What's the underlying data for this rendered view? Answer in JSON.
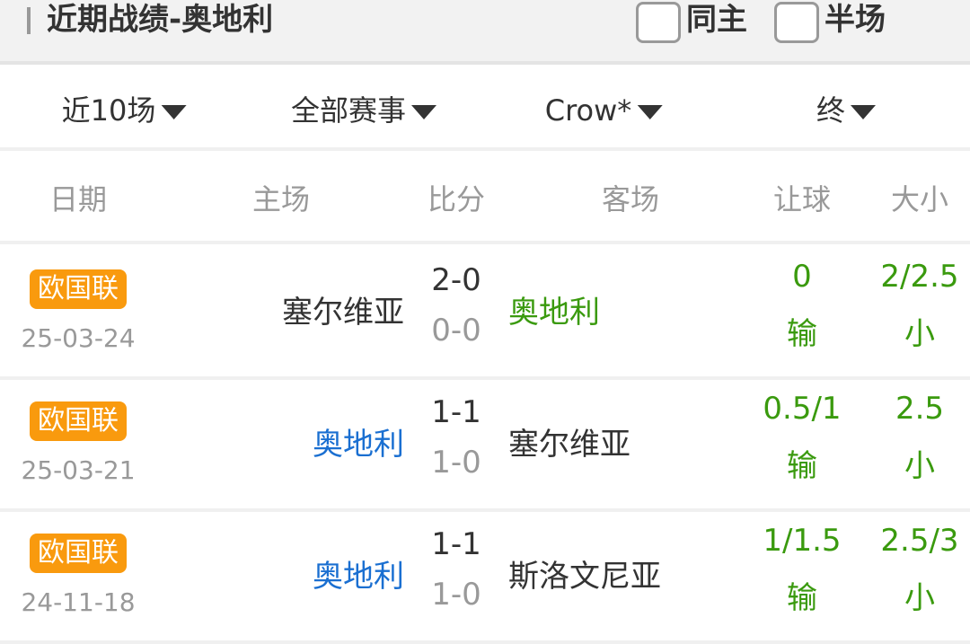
{
  "header": {
    "title": "近期战绩-奥地利",
    "same_home_label": "同主",
    "half_label": "半场"
  },
  "filters": [
    "近10场",
    "全部赛事",
    "Crow*",
    "终"
  ],
  "columns": [
    "日期",
    "主场",
    "比分",
    "客场",
    "让球",
    "大小"
  ],
  "colors": {
    "badge": "#f99a0e",
    "win_green": "#3a9a0e",
    "team_blue": "#1a6fd1"
  },
  "matches": [
    {
      "league": "欧国联",
      "date": "25-03-24",
      "home": "塞尔维亚",
      "home_color": "#333333",
      "score": "2-0",
      "half": "0-0",
      "away": "奥地利",
      "away_color": "#3a9a0e",
      "handicap": "0",
      "handicap_result": "输",
      "ou": "2/2.5",
      "ou_result": "小"
    },
    {
      "league": "欧国联",
      "date": "25-03-21",
      "home": "奥地利",
      "home_color": "#1a6fd1",
      "score": "1-1",
      "half": "1-0",
      "away": "塞尔维亚",
      "away_color": "#333333",
      "handicap": "0.5/1",
      "handicap_result": "输",
      "ou": "2.5",
      "ou_result": "小"
    },
    {
      "league": "欧国联",
      "date": "24-11-18",
      "home": "奥地利",
      "home_color": "#1a6fd1",
      "score": "1-1",
      "half": "1-0",
      "away": "斯洛文尼亚",
      "away_color": "#333333",
      "handicap": "1/1.5",
      "handicap_result": "输",
      "ou": "2.5/3",
      "ou_result": "小"
    }
  ]
}
